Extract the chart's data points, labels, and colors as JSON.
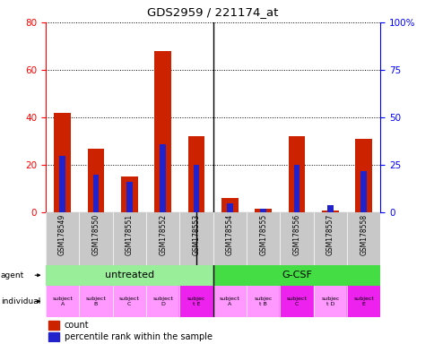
{
  "title": "GDS2959 / 221174_at",
  "samples": [
    "GSM178549",
    "GSM178550",
    "GSM178551",
    "GSM178552",
    "GSM178553",
    "GSM178554",
    "GSM178555",
    "GSM178556",
    "GSM178557",
    "GSM178558"
  ],
  "count_values": [
    42,
    27,
    15,
    68,
    32,
    6,
    1.5,
    32,
    1,
    31
  ],
  "percentile_values": [
    30,
    20,
    16,
    36,
    25,
    5,
    2,
    25,
    4,
    22
  ],
  "ylim_left": [
    0,
    80
  ],
  "ylim_right": [
    0,
    100
  ],
  "yticks_left": [
    0,
    20,
    40,
    60,
    80
  ],
  "yticks_right": [
    0,
    25,
    50,
    75,
    100
  ],
  "ytick_labels_right": [
    "0",
    "25",
    "50",
    "75",
    "100%"
  ],
  "bar_color_count": "#cc2200",
  "bar_color_percentile": "#2222cc",
  "individual_labels": [
    "subject\nA",
    "subject\nB",
    "subject\nC",
    "subject\nD",
    "subjec\nt E",
    "subject\nA",
    "subjec\nt B",
    "subject\nC",
    "subjec\nt D",
    "subject\nE"
  ],
  "individual_highlight": [
    4,
    7,
    9
  ],
  "individual_color_normal": "#ff99ff",
  "individual_color_highlight": "#ee22ee",
  "agent_untreated_color": "#99ee99",
  "agent_gcsf_color": "#44dd44",
  "xticklabel_bg": "#c8c8c8",
  "legend_count_color": "#cc2200",
  "legend_percentile_color": "#2222cc"
}
